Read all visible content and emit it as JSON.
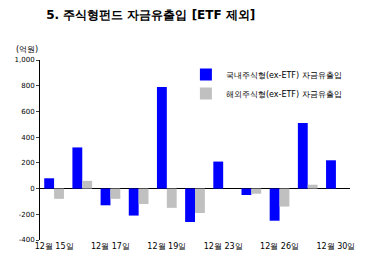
{
  "chart_data": {
    "type": "bar",
    "title": "5. 주식형펀드 자금유출입 [ETF 제외]",
    "ylabel": "(억원)",
    "categories": [
      "12월 15일",
      null,
      "12월 17일",
      null,
      "12월 19일",
      null,
      "12월 23일",
      null,
      "12월 26일",
      null,
      "12월 30일"
    ],
    "series": [
      {
        "name": "국내주식형(ex-ETF) 자금유출입",
        "color": "#0000ff",
        "values": [
          80,
          320,
          -130,
          -210,
          790,
          -260,
          210,
          -50,
          -250,
          510,
          220
        ]
      },
      {
        "name": "해외주식형(ex-ETF) 자금유출입",
        "color": "#c0c0c0",
        "values": [
          -80,
          60,
          -80,
          -120,
          -150,
          -190,
          0,
          -40,
          -140,
          30,
          0
        ]
      }
    ],
    "ylim": [
      -400,
      1000
    ],
    "yticks": [
      -400,
      -200,
      0,
      200,
      400,
      600,
      800,
      {
        "value": 1000,
        "label": "1,000"
      }
    ],
    "grid": false,
    "legend": "top right"
  }
}
